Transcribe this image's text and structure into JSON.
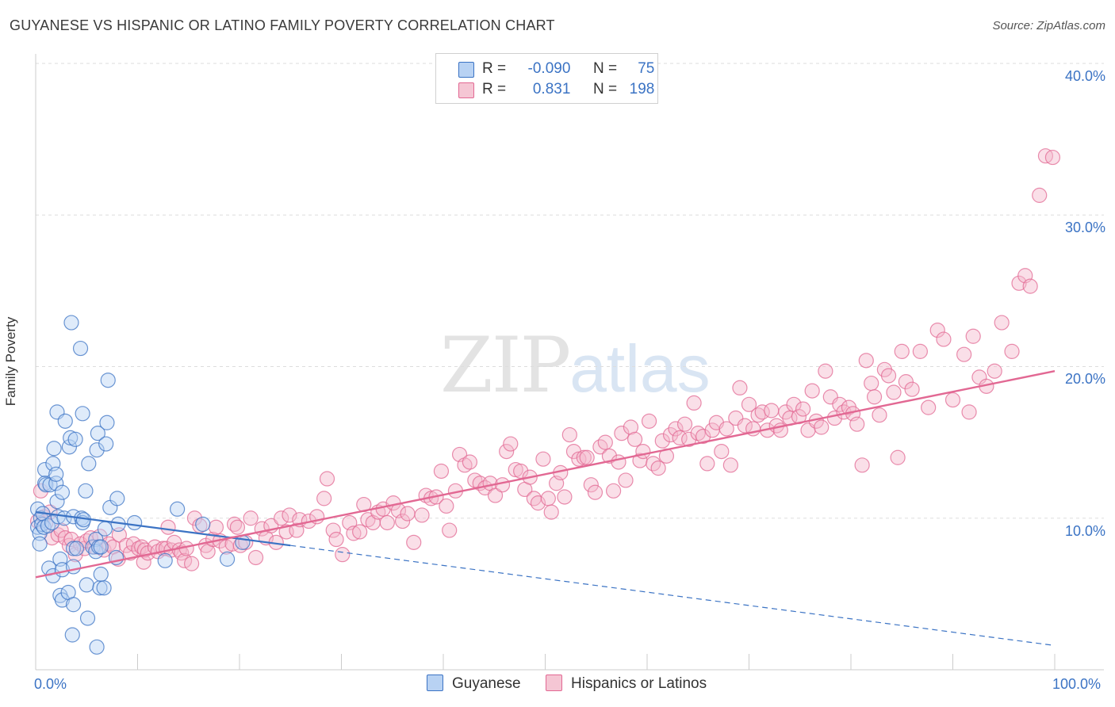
{
  "header": {
    "title": "GUYANESE VS HISPANIC OR LATINO FAMILY POVERTY CORRELATION CHART",
    "source": "Source: ZipAtlas.com"
  },
  "watermark": {
    "zip": "ZIP",
    "atlas": "atlas"
  },
  "colors": {
    "blue": "#3b73c4",
    "blue_fill": "#b8d2f3",
    "pink": "#e26893",
    "pink_fill": "#f5b8cb",
    "grid": "#dddddd"
  },
  "legend": {
    "rows": [
      {
        "r_label": "R =",
        "r_value": "-0.090",
        "n_label": "N =",
        "n_value": "75"
      },
      {
        "r_label": "R =",
        "r_value": "0.831",
        "n_label": "N =",
        "n_value": "198"
      }
    ]
  },
  "bottom_legend": {
    "guyanese": "Guyanese",
    "hispanic": "Hispanics or Latinos"
  },
  "chart_data": {
    "type": "scatter",
    "ylabel": "Family Poverty",
    "xlim": [
      0,
      100
    ],
    "ylim": [
      0,
      40
    ],
    "x_tick_labels": [
      "0.0%",
      "100.0%"
    ],
    "y_ticks": [
      10,
      20,
      30,
      40
    ],
    "y_tick_labels": [
      "10.0%",
      "20.0%",
      "30.0%",
      "40.0%"
    ],
    "grid": "horizontal dashed",
    "series": [
      {
        "name": "Guyanese",
        "r": -0.09,
        "n": 75,
        "trend": {
          "x0": 0,
          "y0": 10.4,
          "x1": 100,
          "y1": 1.6,
          "solid_until": 25
        },
        "points": [
          [
            0.2,
            10.6
          ],
          [
            0.2,
            9.4
          ],
          [
            0.4,
            9.0
          ],
          [
            0.4,
            8.3
          ],
          [
            0.5,
            10.0
          ],
          [
            0.6,
            9.6
          ],
          [
            0.7,
            10.3
          ],
          [
            0.8,
            9.4
          ],
          [
            0.9,
            13.2
          ],
          [
            0.9,
            12.3
          ],
          [
            1.0,
            12.2
          ],
          [
            1.2,
            9.5
          ],
          [
            1.3,
            6.7
          ],
          [
            1.4,
            12.2
          ],
          [
            1.6,
            9.7
          ],
          [
            1.7,
            13.6
          ],
          [
            1.7,
            6.2
          ],
          [
            1.8,
            14.6
          ],
          [
            2.0,
            12.3
          ],
          [
            2.0,
            12.9
          ],
          [
            2.1,
            11.1
          ],
          [
            2.1,
            17.0
          ],
          [
            2.2,
            10.1
          ],
          [
            2.4,
            4.9
          ],
          [
            2.4,
            7.3
          ],
          [
            2.6,
            4.6
          ],
          [
            2.6,
            11.7
          ],
          [
            2.6,
            6.6
          ],
          [
            2.8,
            10.0
          ],
          [
            2.9,
            16.4
          ],
          [
            3.2,
            5.1
          ],
          [
            3.3,
            14.7
          ],
          [
            3.4,
            15.3
          ],
          [
            3.5,
            22.9
          ],
          [
            3.6,
            2.3
          ],
          [
            3.7,
            4.3
          ],
          [
            3.7,
            10.1
          ],
          [
            3.7,
            6.8
          ],
          [
            3.7,
            8.0
          ],
          [
            3.9,
            15.2
          ],
          [
            4.0,
            8.0
          ],
          [
            4.4,
            21.2
          ],
          [
            4.5,
            10.0
          ],
          [
            4.6,
            16.9
          ],
          [
            4.6,
            9.7
          ],
          [
            4.7,
            9.9
          ],
          [
            4.9,
            11.8
          ],
          [
            5.0,
            5.6
          ],
          [
            5.1,
            3.4
          ],
          [
            5.2,
            13.6
          ],
          [
            5.6,
            8.1
          ],
          [
            5.9,
            8.6
          ],
          [
            5.9,
            7.8
          ],
          [
            6.0,
            14.5
          ],
          [
            6.0,
            1.5
          ],
          [
            6.1,
            15.6
          ],
          [
            6.2,
            8.1
          ],
          [
            6.3,
            5.4
          ],
          [
            6.4,
            6.3
          ],
          [
            6.4,
            8.1
          ],
          [
            6.7,
            5.4
          ],
          [
            6.8,
            9.3
          ],
          [
            6.9,
            14.9
          ],
          [
            7.0,
            16.3
          ],
          [
            7.1,
            19.1
          ],
          [
            7.3,
            10.7
          ],
          [
            7.9,
            7.4
          ],
          [
            8.0,
            11.3
          ],
          [
            8.1,
            9.6
          ],
          [
            9.7,
            9.7
          ],
          [
            12.7,
            7.2
          ],
          [
            13.9,
            10.6
          ],
          [
            16.4,
            9.6
          ],
          [
            18.8,
            7.3
          ],
          [
            20.3,
            8.4
          ]
        ]
      },
      {
        "name": "Hispanics or Latinos",
        "r": 0.831,
        "n": 198,
        "trend": {
          "x0": 0,
          "y0": 6.1,
          "x1": 100,
          "y1": 19.7
        },
        "points": [
          [
            0.2,
            9.8
          ],
          [
            0.5,
            11.8
          ],
          [
            0.8,
            10.1
          ],
          [
            1.0,
            9.7
          ],
          [
            1.4,
            10.4
          ],
          [
            1.6,
            8.7
          ],
          [
            2.2,
            8.9
          ],
          [
            2.5,
            9.2
          ],
          [
            2.9,
            8.7
          ],
          [
            3.3,
            8.2
          ],
          [
            3.5,
            8.6
          ],
          [
            3.9,
            7.6
          ],
          [
            4.4,
            8.3
          ],
          [
            4.8,
            8.0
          ],
          [
            5.0,
            8.5
          ],
          [
            5.4,
            8.7
          ],
          [
            5.8,
            8.1
          ],
          [
            6.3,
            8.8
          ],
          [
            6.7,
            7.9
          ],
          [
            7.2,
            8.3
          ],
          [
            7.6,
            8.1
          ],
          [
            8.1,
            7.3
          ],
          [
            8.2,
            8.9
          ],
          [
            8.9,
            8.2
          ],
          [
            9.3,
            7.7
          ],
          [
            9.6,
            8.3
          ],
          [
            10.1,
            8.0
          ],
          [
            10.4,
            8.1
          ],
          [
            10.6,
            7.1
          ],
          [
            10.7,
            7.9
          ],
          [
            11.0,
            7.7
          ],
          [
            11.7,
            8.1
          ],
          [
            12.0,
            7.8
          ],
          [
            12.5,
            8.0
          ],
          [
            12.8,
            8.0
          ],
          [
            13.0,
            9.4
          ],
          [
            13.3,
            7.9
          ],
          [
            13.6,
            8.4
          ],
          [
            14.1,
            7.9
          ],
          [
            14.3,
            7.7
          ],
          [
            14.6,
            7.2
          ],
          [
            14.8,
            8.0
          ],
          [
            15.3,
            7.0
          ],
          [
            15.6,
            10.0
          ],
          [
            16.1,
            9.5
          ],
          [
            16.7,
            8.2
          ],
          [
            16.9,
            7.8
          ],
          [
            17.4,
            8.6
          ],
          [
            17.7,
            9.4
          ],
          [
            18.1,
            8.5
          ],
          [
            18.7,
            8.1
          ],
          [
            19.3,
            8.3
          ],
          [
            19.5,
            9.6
          ],
          [
            19.8,
            9.4
          ],
          [
            20.1,
            8.2
          ],
          [
            20.6,
            8.4
          ],
          [
            21.1,
            10.0
          ],
          [
            21.6,
            7.4
          ],
          [
            22.2,
            9.3
          ],
          [
            22.6,
            8.7
          ],
          [
            23.1,
            9.5
          ],
          [
            23.6,
            8.4
          ],
          [
            24.1,
            10.0
          ],
          [
            24.6,
            9.1
          ],
          [
            24.9,
            10.2
          ],
          [
            25.6,
            9.2
          ],
          [
            25.9,
            9.9
          ],
          [
            26.8,
            9.8
          ],
          [
            27.6,
            10.1
          ],
          [
            28.3,
            11.3
          ],
          [
            28.6,
            12.6
          ],
          [
            29.2,
            9.2
          ],
          [
            29.5,
            8.6
          ],
          [
            30.1,
            7.6
          ],
          [
            30.8,
            9.7
          ],
          [
            31.2,
            9.0
          ],
          [
            31.8,
            9.1
          ],
          [
            32.2,
            10.9
          ],
          [
            32.6,
            9.9
          ],
          [
            33.1,
            9.7
          ],
          [
            33.6,
            10.4
          ],
          [
            34.1,
            10.6
          ],
          [
            34.5,
            9.7
          ],
          [
            35.1,
            11.0
          ],
          [
            35.6,
            10.5
          ],
          [
            36.0,
            9.8
          ],
          [
            36.5,
            10.3
          ],
          [
            37.1,
            8.4
          ],
          [
            37.9,
            10.2
          ],
          [
            38.3,
            11.5
          ],
          [
            38.8,
            11.3
          ],
          [
            39.3,
            11.4
          ],
          [
            39.8,
            13.1
          ],
          [
            40.3,
            10.8
          ],
          [
            40.6,
            9.2
          ],
          [
            41.2,
            11.8
          ],
          [
            41.6,
            14.2
          ],
          [
            42.1,
            13.5
          ],
          [
            42.6,
            13.7
          ],
          [
            43.1,
            12.5
          ],
          [
            43.6,
            12.3
          ],
          [
            44.1,
            12.0
          ],
          [
            44.6,
            12.3
          ],
          [
            45.1,
            11.5
          ],
          [
            45.8,
            12.2
          ],
          [
            46.2,
            14.4
          ],
          [
            46.6,
            14.9
          ],
          [
            47.1,
            13.2
          ],
          [
            47.6,
            13.1
          ],
          [
            48.0,
            11.9
          ],
          [
            48.5,
            12.7
          ],
          [
            48.9,
            11.3
          ],
          [
            49.3,
            11.0
          ],
          [
            49.8,
            13.9
          ],
          [
            50.3,
            11.3
          ],
          [
            50.6,
            10.4
          ],
          [
            51.1,
            12.3
          ],
          [
            51.5,
            13.0
          ],
          [
            51.9,
            11.4
          ],
          [
            52.4,
            15.5
          ],
          [
            52.8,
            14.4
          ],
          [
            53.3,
            13.9
          ],
          [
            53.8,
            14.0
          ],
          [
            54.1,
            14.0
          ],
          [
            54.5,
            12.2
          ],
          [
            54.9,
            11.7
          ],
          [
            55.4,
            14.7
          ],
          [
            55.9,
            15.0
          ],
          [
            56.3,
            14.1
          ],
          [
            56.7,
            11.8
          ],
          [
            57.2,
            13.7
          ],
          [
            57.5,
            15.6
          ],
          [
            57.9,
            12.5
          ],
          [
            58.4,
            16.0
          ],
          [
            58.8,
            15.2
          ],
          [
            59.3,
            13.8
          ],
          [
            59.6,
            14.4
          ],
          [
            60.2,
            16.4
          ],
          [
            60.6,
            13.6
          ],
          [
            61.1,
            13.3
          ],
          [
            61.5,
            15.1
          ],
          [
            61.9,
            14.1
          ],
          [
            62.3,
            15.5
          ],
          [
            62.8,
            15.9
          ],
          [
            63.2,
            15.3
          ],
          [
            63.7,
            16.2
          ],
          [
            64.1,
            15.2
          ],
          [
            64.6,
            17.6
          ],
          [
            65.0,
            15.6
          ],
          [
            65.5,
            15.4
          ],
          [
            65.9,
            13.6
          ],
          [
            66.4,
            15.8
          ],
          [
            66.8,
            16.3
          ],
          [
            67.3,
            14.4
          ],
          [
            67.8,
            15.9
          ],
          [
            68.2,
            13.5
          ],
          [
            68.7,
            16.6
          ],
          [
            69.1,
            18.6
          ],
          [
            69.6,
            16.1
          ],
          [
            70.0,
            17.5
          ],
          [
            70.4,
            15.9
          ],
          [
            70.9,
            16.8
          ],
          [
            71.3,
            17.0
          ],
          [
            71.8,
            15.8
          ],
          [
            72.2,
            17.1
          ],
          [
            72.7,
            16.1
          ],
          [
            73.1,
            15.8
          ],
          [
            73.6,
            17.0
          ],
          [
            74.0,
            16.6
          ],
          [
            74.4,
            17.5
          ],
          [
            74.9,
            16.7
          ],
          [
            75.3,
            17.2
          ],
          [
            75.8,
            15.8
          ],
          [
            76.2,
            18.4
          ],
          [
            76.6,
            16.4
          ],
          [
            77.1,
            16.0
          ],
          [
            77.5,
            19.7
          ],
          [
            78.0,
            18.0
          ],
          [
            78.4,
            16.6
          ],
          [
            78.9,
            17.5
          ],
          [
            79.3,
            17.0
          ],
          [
            79.8,
            17.3
          ],
          [
            80.2,
            16.9
          ],
          [
            80.6,
            16.2
          ],
          [
            81.1,
            13.5
          ],
          [
            81.5,
            20.4
          ],
          [
            82.0,
            18.9
          ],
          [
            82.3,
            18.0
          ],
          [
            82.8,
            16.8
          ],
          [
            83.3,
            19.8
          ],
          [
            83.7,
            19.4
          ],
          [
            84.2,
            18.3
          ],
          [
            84.6,
            14.0
          ],
          [
            85.0,
            21.0
          ],
          [
            85.4,
            19.0
          ],
          [
            86.0,
            18.5
          ],
          [
            86.8,
            21.0
          ],
          [
            87.6,
            17.3
          ],
          [
            88.5,
            22.4
          ],
          [
            89.1,
            21.8
          ],
          [
            90.0,
            17.8
          ],
          [
            91.1,
            20.8
          ],
          [
            91.6,
            17.0
          ],
          [
            92.0,
            22.0
          ],
          [
            92.6,
            19.3
          ],
          [
            93.3,
            18.7
          ],
          [
            94.1,
            19.7
          ],
          [
            94.8,
            22.9
          ],
          [
            95.8,
            21.0
          ],
          [
            96.5,
            25.5
          ],
          [
            97.1,
            26.0
          ],
          [
            97.6,
            25.3
          ],
          [
            98.5,
            31.3
          ],
          [
            99.1,
            33.9
          ],
          [
            99.8,
            33.8
          ]
        ]
      }
    ]
  }
}
